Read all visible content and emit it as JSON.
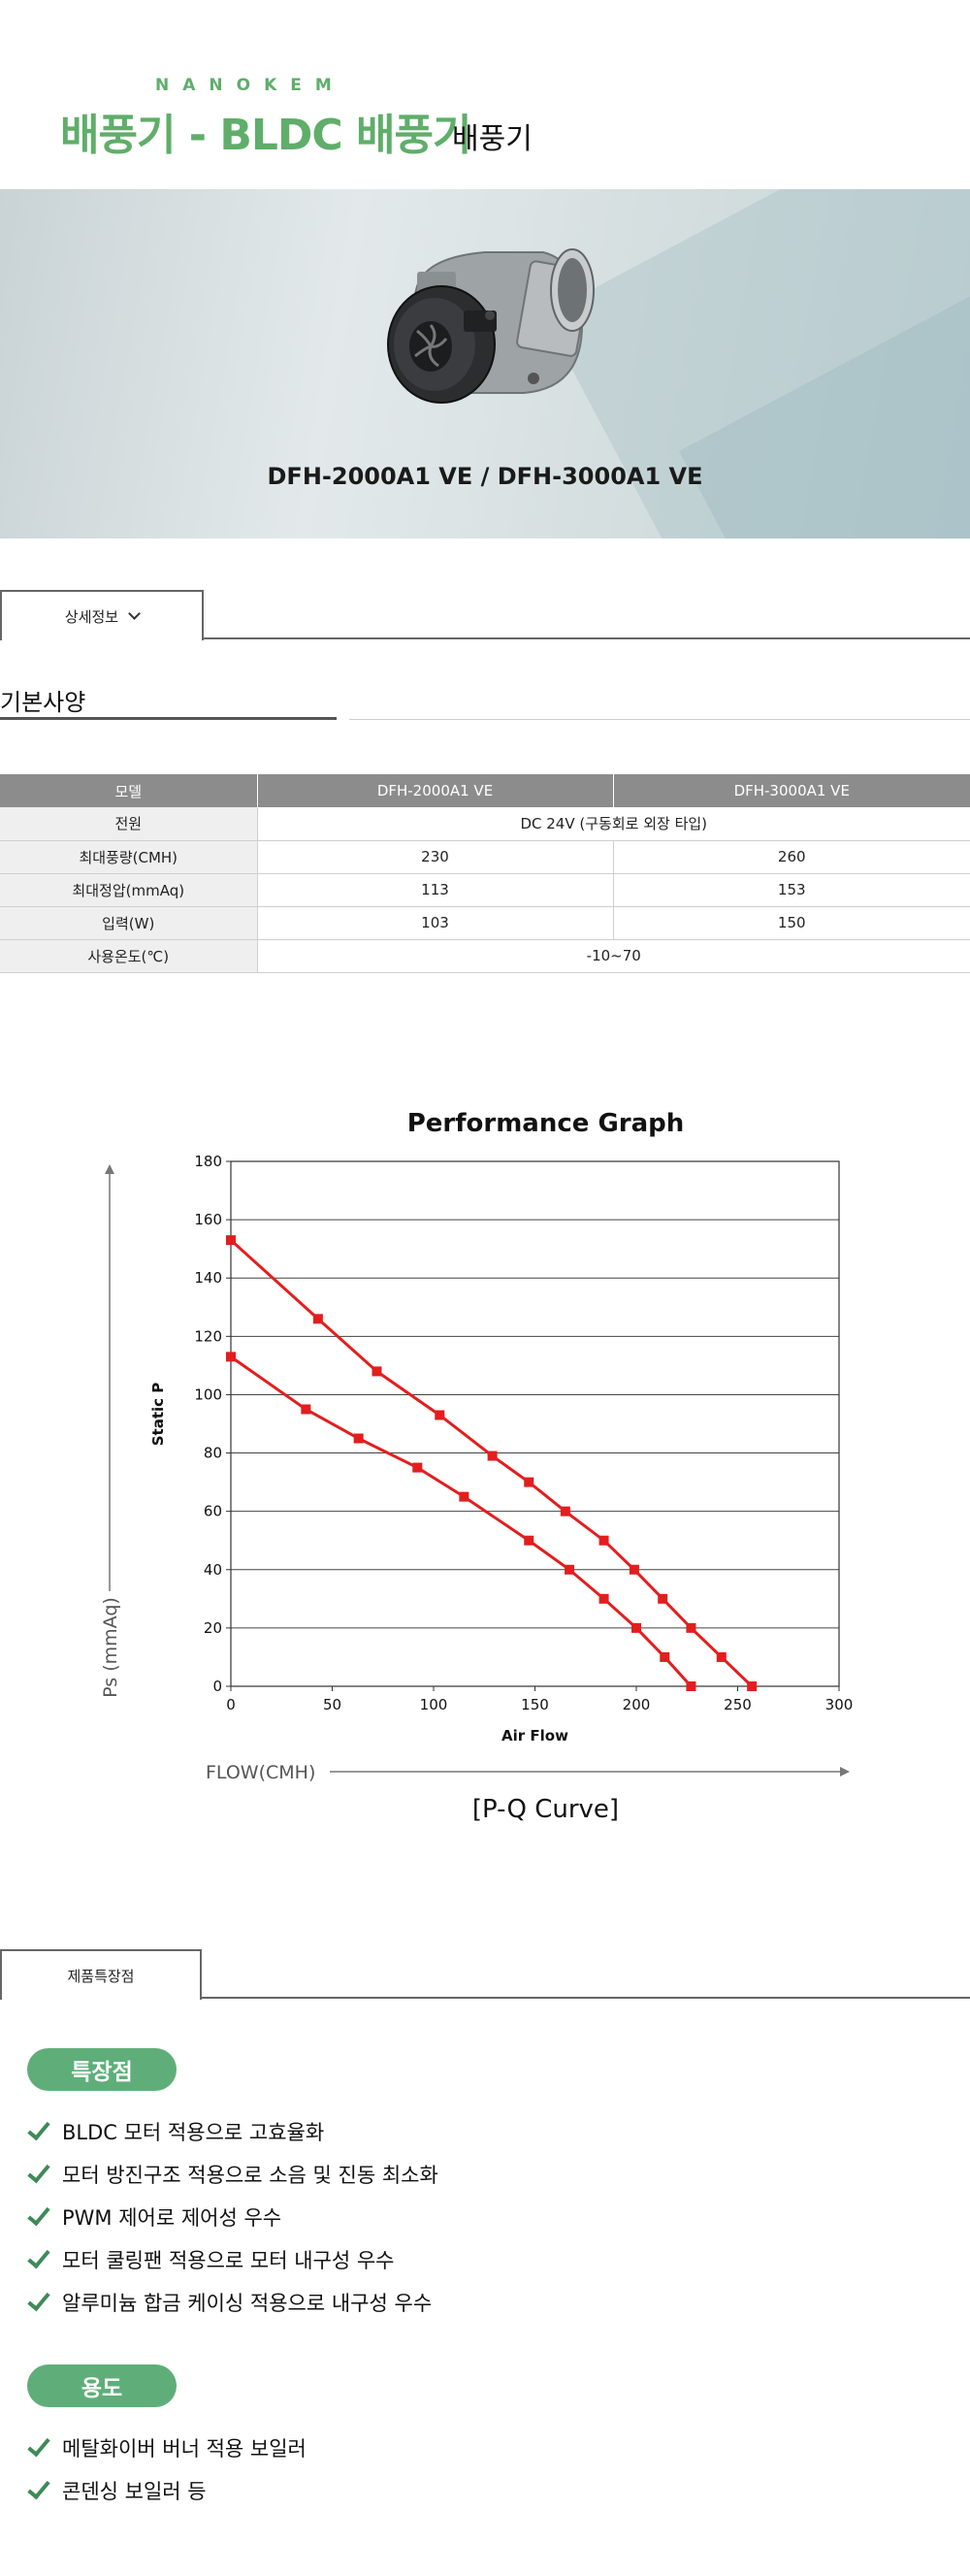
{
  "header": {
    "brand": "NANOKEM",
    "title": "배풍기 - BLDC 배풍기",
    "subtitle": "배풍기"
  },
  "hero": {
    "caption": "DFH-2000A1 VE / DFH-3000A1 VE"
  },
  "tabs": {
    "detail": "상세정보",
    "features": "제품특장점"
  },
  "section": {
    "title": "기본사양"
  },
  "spec_table": {
    "headers": [
      "모델",
      "DFH-2000A1 VE",
      "DFH-3000A1 VE"
    ],
    "rows": [
      {
        "label": "전원",
        "merged": "DC 24V (구동회로 외장 타입)"
      },
      {
        "label": "최대풍량(CMH)",
        "a": "230",
        "b": "260"
      },
      {
        "label": "최대정압(mmAq)",
        "a": "113",
        "b": "153"
      },
      {
        "label": "입력(W)",
        "a": "103",
        "b": "150"
      },
      {
        "label": "사용온도(℃)",
        "merged": "-10~70"
      }
    ]
  },
  "chart_data": {
    "type": "line",
    "title": "Performance Graph",
    "xlabel": "Air Flow",
    "ylabel": "Static P",
    "outer_xlabel": "FLOW(CMH)",
    "outer_ylabel": "Ps (mmAq)",
    "caption": "[P-Q Curve]",
    "xlim": [
      0,
      300
    ],
    "ylim": [
      0,
      180
    ],
    "xticks": [
      0,
      50,
      100,
      150,
      200,
      250,
      300
    ],
    "yticks": [
      0,
      20,
      40,
      60,
      80,
      100,
      120,
      140,
      160,
      180
    ],
    "grid": true,
    "series": [
      {
        "color": "#e31e1e",
        "points": [
          [
            0,
            153
          ],
          [
            43,
            126
          ],
          [
            72,
            108
          ],
          [
            103,
            93
          ],
          [
            129,
            79
          ],
          [
            147,
            70
          ],
          [
            165,
            60
          ],
          [
            184,
            50
          ],
          [
            199,
            40
          ],
          [
            213,
            30
          ],
          [
            227,
            20
          ],
          [
            242,
            10
          ],
          [
            257,
            0
          ]
        ]
      },
      {
        "color": "#e31e1e",
        "points": [
          [
            0,
            113
          ],
          [
            37,
            95
          ],
          [
            63,
            85
          ],
          [
            92,
            75
          ],
          [
            115,
            65
          ],
          [
            147,
            50
          ],
          [
            167,
            40
          ],
          [
            184,
            30
          ],
          [
            200,
            20
          ],
          [
            214,
            10
          ],
          [
            227,
            0
          ]
        ]
      }
    ]
  },
  "features": {
    "pill1": "특장점",
    "list1": [
      "BLDC 모터 적용으로 고효율화",
      "모터 방진구조 적용으로 소음 및 진동 최소화",
      "PWM 제어로 제어성 우수",
      "모터 쿨링팬 적용으로 모터 내구성 우수",
      "알루미늄 합금 케이싱 적용으로 내구성 우수"
    ],
    "pill2": "용도",
    "list2": [
      "메탈화이버 버너 적용 보일러",
      "콘덴싱 보일러 등"
    ]
  }
}
